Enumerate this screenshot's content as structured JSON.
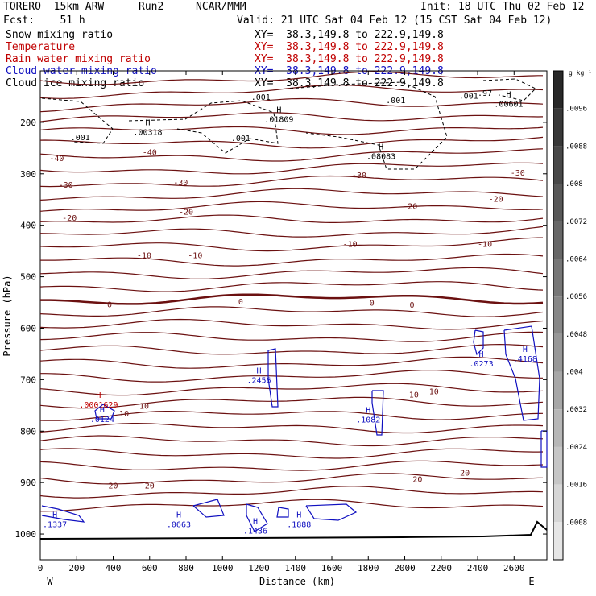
{
  "header": {
    "model": "TORERO  15km ARW",
    "run": "Run2",
    "org": "NCAR/MMM",
    "init": "Init: 18 UTC Thu 02 Feb 12",
    "fcst": "Fcst:    51 h",
    "valid": "Valid: 21 UTC Sat 04 Feb 12 (15 CST Sat 04 Feb 12)",
    "fields": [
      {
        "name": "Snow mixing ratio",
        "xy": "XY=  38.3,149.8 to 222.9,149.8",
        "color": "#000000"
      },
      {
        "name": "Temperature",
        "xy": "XY=  38.3,149.8 to 222.9,149.8",
        "color": "#c00000"
      },
      {
        "name": "Rain water mixing ratio",
        "xy": "XY=  38.3,149.8 to 222.9,149.8",
        "color": "#c00000"
      },
      {
        "name": "Cloud water mixing ratio",
        "xy": "XY=  38.3,149.8 to 222.9,149.8",
        "color": "#1010c0"
      },
      {
        "name": "Cloud ice mixing ratio",
        "xy": "XY=  38.3,149.8 to 222.9,149.8",
        "color": "#000000"
      }
    ]
  },
  "chart_data": {
    "type": "contour",
    "xlabel": "Distance (km)",
    "ylabel": "Pressure (hPa)",
    "xlim": [
      0,
      2780
    ],
    "ylim": [
      1050,
      100
    ],
    "xticks": [
      0,
      200,
      400,
      600,
      800,
      1000,
      1200,
      1400,
      1600,
      1800,
      2000,
      2200,
      2400,
      2600
    ],
    "yticks": [
      200,
      300,
      400,
      500,
      600,
      700,
      800,
      900,
      1000
    ],
    "x_end_labels": {
      "left": "W",
      "right": "E"
    },
    "colorbar": {
      "unit": "g kg⁻¹",
      "labels": [
        ".0096",
        ".0088",
        ".008",
        ".0072",
        ".0064",
        ".0056",
        ".0048",
        ".004",
        ".0032",
        ".0024",
        ".0016",
        ".0008"
      ]
    },
    "temperature_labels": [
      {
        "x": 90,
        "p": 269,
        "v": "-40"
      },
      {
        "x": 600,
        "p": 257,
        "v": "-40"
      },
      {
        "x": 140,
        "p": 321,
        "v": "-30"
      },
      {
        "x": 770,
        "p": 316,
        "v": "-30"
      },
      {
        "x": 1750,
        "p": 302,
        "v": "-30"
      },
      {
        "x": 2620,
        "p": 297,
        "v": "-30"
      },
      {
        "x": 160,
        "p": 385,
        "v": "-20"
      },
      {
        "x": 800,
        "p": 373,
        "v": "-20"
      },
      {
        "x": 2030,
        "p": 362,
        "v": "-20"
      },
      {
        "x": 2500,
        "p": 348,
        "v": "-20"
      },
      {
        "x": 570,
        "p": 458,
        "v": "-10"
      },
      {
        "x": 850,
        "p": 458,
        "v": "-10"
      },
      {
        "x": 1700,
        "p": 436,
        "v": "-10"
      },
      {
        "x": 2440,
        "p": 436,
        "v": "-10"
      },
      {
        "x": 380,
        "p": 553,
        "v": "0"
      },
      {
        "x": 1100,
        "p": 548,
        "v": "0"
      },
      {
        "x": 1820,
        "p": 550,
        "v": "0"
      },
      {
        "x": 2040,
        "p": 554,
        "v": "0"
      },
      {
        "x": 460,
        "p": 765,
        "v": "10"
      },
      {
        "x": 570,
        "p": 750,
        "v": "10"
      },
      {
        "x": 2050,
        "p": 728,
        "v": "10"
      },
      {
        "x": 2160,
        "p": 722,
        "v": "10"
      },
      {
        "x": 400,
        "p": 905,
        "v": "20"
      },
      {
        "x": 600,
        "p": 905,
        "v": "20"
      },
      {
        "x": 2070,
        "p": 893,
        "v": "20"
      },
      {
        "x": 2330,
        "p": 880,
        "v": "20"
      }
    ],
    "snow_labels": [
      {
        "x": 220,
        "p": 228,
        "v": ".001"
      },
      {
        "x": 1100,
        "p": 230,
        "v": ".001"
      },
      {
        "x": 1950,
        "p": 156,
        "v": ".001"
      },
      {
        "x": 2350,
        "p": 148,
        "v": ".001"
      },
      {
        "x": 2440,
        "p": 142,
        "v": ".97"
      }
    ],
    "ice_label": {
      "x": 1210,
      "p": 150,
      "v": ".001"
    },
    "maxima": [
      {
        "x": 590,
        "p": 218,
        "v": ".00318",
        "color": "#000000"
      },
      {
        "x": 1310,
        "p": 193,
        "v": ".01809",
        "color": "#000000"
      },
      {
        "x": 1870,
        "p": 265,
        "v": ".08083",
        "color": "#000000"
      },
      {
        "x": 2570,
        "p": 163,
        "v": ".00601",
        "color": "#000000"
      },
      {
        "x": 320,
        "p": 748,
        "v": ".0001629",
        "color": "#c00000"
      },
      {
        "x": 340,
        "p": 776,
        "v": ".0124",
        "color": "#1010c0"
      },
      {
        "x": 1200,
        "p": 700,
        "v": ".2456",
        "color": "#1010c0"
      },
      {
        "x": 1800,
        "p": 777,
        "v": ".1082",
        "color": "#1010c0"
      },
      {
        "x": 2420,
        "p": 668,
        "v": ".0273",
        "color": "#1010c0"
      },
      {
        "x": 2660,
        "p": 659,
        "v": ".4168",
        "color": "#1010c0"
      },
      {
        "x": 80,
        "p": 980,
        "v": ".1337",
        "color": "#1010c0"
      },
      {
        "x": 760,
        "p": 980,
        "v": ".0663",
        "color": "#1010c0"
      },
      {
        "x": 1180,
        "p": 993,
        "v": ".1436",
        "color": "#1010c0"
      },
      {
        "x": 1420,
        "p": 980,
        "v": ".1888",
        "color": "#1010c0"
      }
    ]
  }
}
